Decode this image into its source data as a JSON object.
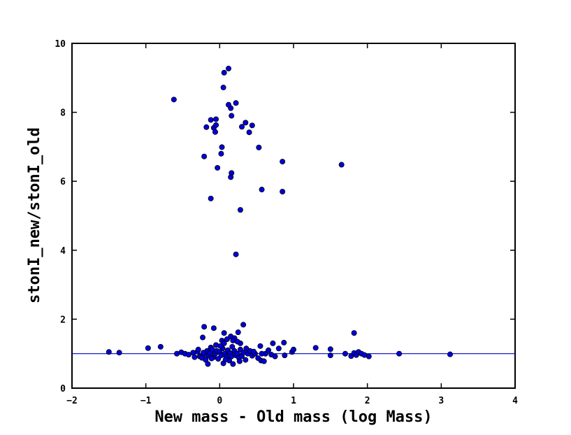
{
  "chart_data": {
    "type": "scatter",
    "title": "",
    "xlabel": "New mass - Old mass (log Mass)",
    "ylabel": "stonI_new/stonI_old",
    "xlim": [
      -2,
      4
    ],
    "ylim": [
      0,
      10
    ],
    "x_ticks": [
      -2,
      -1,
      0,
      1,
      2,
      3,
      4
    ],
    "y_ticks": [
      0,
      2,
      4,
      6,
      8,
      10
    ],
    "x_tick_labels": [
      "−2",
      "−1",
      "0",
      "1",
      "2",
      "3",
      "4"
    ],
    "y_tick_labels": [
      "0",
      "2",
      "4",
      "6",
      "8",
      "10"
    ],
    "grid": false,
    "reference_line": {
      "y": 1.0,
      "color": "#0000cc"
    },
    "marker_color": "#0000dd",
    "series": [
      {
        "points": [
          [
            -0.62,
            8.37
          ],
          [
            0.06,
            9.15
          ],
          [
            0.12,
            9.27
          ],
          [
            0.05,
            8.72
          ],
          [
            0.15,
            8.12
          ],
          [
            0.12,
            8.22
          ],
          [
            0.22,
            8.27
          ],
          [
            -0.12,
            7.78
          ],
          [
            -0.05,
            7.8
          ],
          [
            -0.18,
            7.57
          ],
          [
            -0.08,
            7.55
          ],
          [
            -0.05,
            7.63
          ],
          [
            -0.06,
            7.43
          ],
          [
            0.16,
            7.9
          ],
          [
            0.3,
            7.58
          ],
          [
            0.35,
            7.7
          ],
          [
            0.44,
            7.62
          ],
          [
            0.4,
            7.42
          ],
          [
            0.53,
            6.98
          ],
          [
            0.03,
            6.99
          ],
          [
            0.02,
            6.8
          ],
          [
            -0.21,
            6.72
          ],
          [
            0.85,
            6.57
          ],
          [
            1.65,
            6.48
          ],
          [
            -0.03,
            6.39
          ],
          [
            0.16,
            6.24
          ],
          [
            0.15,
            6.12
          ],
          [
            0.57,
            5.76
          ],
          [
            0.85,
            5.7
          ],
          [
            -0.12,
            5.5
          ],
          [
            0.28,
            5.17
          ],
          [
            0.22,
            3.88
          ],
          [
            -0.21,
            1.78
          ],
          [
            -0.08,
            1.74
          ],
          [
            0.32,
            1.84
          ],
          [
            0.25,
            1.62
          ],
          [
            0.06,
            1.6
          ],
          [
            0.15,
            1.5
          ],
          [
            0.2,
            1.45
          ],
          [
            0.1,
            1.42
          ],
          [
            0.03,
            1.38
          ],
          [
            -0.23,
            1.47
          ],
          [
            0.18,
            1.38
          ],
          [
            0.28,
            1.3
          ],
          [
            0.55,
            1.22
          ],
          [
            0.72,
            1.3
          ],
          [
            0.87,
            1.32
          ],
          [
            -0.12,
            1.18
          ],
          [
            -0.05,
            1.25
          ],
          [
            1.82,
            1.6
          ],
          [
            0.06,
            1.3
          ],
          [
            0.24,
            1.35
          ],
          [
            -1.5,
            1.05
          ],
          [
            -1.36,
            1.03
          ],
          [
            -0.97,
            1.16
          ],
          [
            -0.8,
            1.2
          ],
          [
            -0.58,
            1.0
          ],
          [
            -0.52,
            1.04
          ],
          [
            -0.47,
            1.0
          ],
          [
            -0.42,
            0.97
          ],
          [
            -0.36,
            1.03
          ],
          [
            -0.3,
            1.06
          ],
          [
            -0.27,
            0.92
          ],
          [
            -0.24,
            0.88
          ],
          [
            -0.2,
            0.98
          ],
          [
            -0.17,
            1.08
          ],
          [
            -0.15,
            0.94
          ],
          [
            -0.13,
            1.02
          ],
          [
            -0.1,
            1.12
          ],
          [
            -0.08,
            0.9
          ],
          [
            -0.06,
            1.0
          ],
          [
            -0.04,
            1.08
          ],
          [
            -0.02,
            0.85
          ],
          [
            0.0,
            1.05
          ],
          [
            0.02,
            0.95
          ],
          [
            0.04,
            1.15
          ],
          [
            0.05,
            0.72
          ],
          [
            0.07,
            1.0
          ],
          [
            0.09,
            0.9
          ],
          [
            0.11,
            1.1
          ],
          [
            0.13,
            0.8
          ],
          [
            0.14,
            1.02
          ],
          [
            0.16,
            0.92
          ],
          [
            0.18,
            0.7
          ],
          [
            0.2,
            1.08
          ],
          [
            0.22,
            0.95
          ],
          [
            0.24,
            1.0
          ],
          [
            0.26,
            0.88
          ],
          [
            0.28,
            1.12
          ],
          [
            0.3,
            0.93
          ],
          [
            0.32,
            1.03
          ],
          [
            0.35,
            0.82
          ],
          [
            0.38,
            1.0
          ],
          [
            0.41,
            1.08
          ],
          [
            0.44,
            0.94
          ],
          [
            0.48,
            1.0
          ],
          [
            -0.16,
            0.7
          ],
          [
            0.52,
            0.87
          ],
          [
            0.56,
            0.8
          ],
          [
            0.6,
            0.78
          ],
          [
            0.62,
            1.0
          ],
          [
            0.66,
            1.1
          ],
          [
            0.7,
            0.97
          ],
          [
            0.75,
            0.92
          ],
          [
            0.8,
            1.15
          ],
          [
            0.88,
            0.95
          ],
          [
            0.98,
            1.05
          ],
          [
            1.0,
            1.12
          ],
          [
            1.3,
            1.17
          ],
          [
            1.5,
            1.13
          ],
          [
            1.5,
            0.95
          ],
          [
            1.7,
            1.0
          ],
          [
            1.78,
            0.93
          ],
          [
            1.82,
            1.02
          ],
          [
            1.85,
            0.96
          ],
          [
            1.88,
            1.05
          ],
          [
            1.92,
            1.0
          ],
          [
            1.96,
            0.96
          ],
          [
            2.02,
            0.92
          ],
          [
            2.43,
            1.0
          ],
          [
            3.12,
            0.98
          ],
          [
            -0.34,
            0.9
          ],
          [
            -0.29,
            1.12
          ],
          [
            -0.22,
            1.03
          ],
          [
            -0.11,
            0.86
          ],
          [
            0.01,
            1.22
          ],
          [
            0.08,
            0.83
          ],
          [
            0.17,
            1.2
          ],
          [
            0.27,
            0.78
          ],
          [
            0.36,
            1.15
          ],
          [
            0.46,
            1.06
          ],
          [
            0.57,
            1.0
          ],
          [
            -0.19,
            0.82
          ]
        ]
      }
    ]
  }
}
